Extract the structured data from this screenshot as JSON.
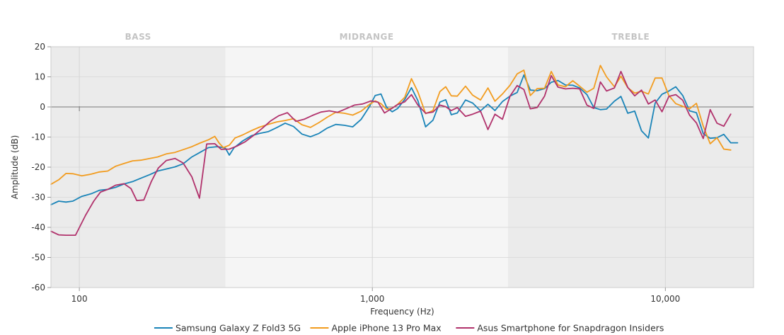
{
  "chart_data": {
    "type": "line",
    "xlabel": "Frequency (Hz)",
    "ylabel": "Amplitude (dB)",
    "x_scale": "log",
    "xlim": [
      80,
      20000
    ],
    "ylim": [
      -60,
      20
    ],
    "y_ticks": [
      20,
      10,
      0,
      -10,
      -20,
      -30,
      -40,
      -50,
      -60
    ],
    "y_tick_labels": [
      "20",
      "10",
      "0",
      "-10",
      "-20",
      "-30",
      "-40",
      "-50",
      "-60"
    ],
    "x_ticks": [
      100,
      1000,
      10000
    ],
    "x_tick_labels": [
      "100",
      "1,000",
      "10,000"
    ],
    "bands": [
      {
        "label": "BASS",
        "from": 80,
        "to": 315,
        "color": "#ebebeb"
      },
      {
        "label": "MIDRANGE",
        "from": 315,
        "to": 2900,
        "color": "#f5f5f5"
      },
      {
        "label": "TREBLE",
        "from": 2900,
        "to": 20000,
        "color": "#ebebeb"
      }
    ],
    "legend_position": "bottom",
    "series": [
      {
        "name": "Samsung Galaxy Z Fold3 5G",
        "color": "#1a84b8",
        "points": [
          [
            80,
            -32.5
          ],
          [
            85,
            -31.3
          ],
          [
            90,
            -31.6
          ],
          [
            95,
            -31.3
          ],
          [
            102,
            -29.7
          ],
          [
            110,
            -28.8
          ],
          [
            117,
            -27.7
          ],
          [
            125,
            -27.4
          ],
          [
            133,
            -26.7
          ],
          [
            142,
            -25.6
          ],
          [
            152,
            -24.8
          ],
          [
            162,
            -23.7
          ],
          [
            174,
            -22.5
          ],
          [
            185,
            -21.3
          ],
          [
            198,
            -20.6
          ],
          [
            212,
            -19.9
          ],
          [
            226,
            -18.9
          ],
          [
            242,
            -16.6
          ],
          [
            258,
            -15.1
          ],
          [
            276,
            -13.5
          ],
          [
            295,
            -13.2
          ],
          [
            305,
            -13.4
          ],
          [
            315,
            -13.7
          ],
          [
            325,
            -16
          ],
          [
            337,
            -13.6
          ],
          [
            361,
            -11.3
          ],
          [
            386,
            -9.6
          ],
          [
            412,
            -8.8
          ],
          [
            441,
            -8.2
          ],
          [
            471,
            -6.9
          ],
          [
            504,
            -5.4
          ],
          [
            538,
            -6.5
          ],
          [
            575,
            -9
          ],
          [
            615,
            -9.9
          ],
          [
            657,
            -8.8
          ],
          [
            702,
            -7
          ],
          [
            750,
            -5.8
          ],
          [
            802,
            -6.1
          ],
          [
            857,
            -6.6
          ],
          [
            916,
            -4.1
          ],
          [
            979,
            0.2
          ],
          [
            1022,
            3.8
          ],
          [
            1070,
            4.3
          ],
          [
            1118,
            -0.1
          ],
          [
            1169,
            -1.6
          ],
          [
            1221,
            -0.5
          ],
          [
            1290,
            2.5
          ],
          [
            1360,
            6.4
          ],
          [
            1430,
            2.1
          ],
          [
            1520,
            -6.6
          ],
          [
            1610,
            -4.4
          ],
          [
            1700,
            1.6
          ],
          [
            1780,
            2.4
          ],
          [
            1860,
            -2.6
          ],
          [
            1950,
            -2
          ],
          [
            2080,
            2.3
          ],
          [
            2200,
            1.3
          ],
          [
            2340,
            -1.3
          ],
          [
            2480,
            0.9
          ],
          [
            2620,
            -1.2
          ],
          [
            2780,
            1.8
          ],
          [
            2950,
            3.6
          ],
          [
            3120,
            4.8
          ],
          [
            3290,
            10.6
          ],
          [
            3460,
            5.6
          ],
          [
            3650,
            5.4
          ],
          [
            3870,
            6.1
          ],
          [
            4080,
            8.2
          ],
          [
            4300,
            8.8
          ],
          [
            4560,
            7.3
          ],
          [
            4830,
            7.2
          ],
          [
            5100,
            6.3
          ],
          [
            5400,
            4.1
          ],
          [
            5700,
            -0.2
          ],
          [
            6000,
            -0.9
          ],
          [
            6300,
            -0.7
          ],
          [
            6700,
            1.9
          ],
          [
            7050,
            3.5
          ],
          [
            7440,
            -2.1
          ],
          [
            7860,
            -1.4
          ],
          [
            8290,
            -7.9
          ],
          [
            8750,
            -10.3
          ],
          [
            9230,
            1.3
          ],
          [
            9740,
            4.2
          ],
          [
            10280,
            5.3
          ],
          [
            10850,
            6.7
          ],
          [
            11460,
            3.8
          ],
          [
            12090,
            -1.3
          ],
          [
            12760,
            -1.9
          ],
          [
            13470,
            -8.9
          ],
          [
            14220,
            -10.4
          ],
          [
            15000,
            -10.2
          ],
          [
            15830,
            -9.1
          ],
          [
            16710,
            -11.9
          ],
          [
            17640,
            -11.9
          ]
        ]
      },
      {
        "name": "Apple iPhone 13 Pro Max",
        "color": "#f29c1f",
        "points": [
          [
            80,
            -25.7
          ],
          [
            85,
            -24.2
          ],
          [
            90,
            -22.1
          ],
          [
            95,
            -22.2
          ],
          [
            102,
            -22.9
          ],
          [
            110,
            -22.3
          ],
          [
            117,
            -21.6
          ],
          [
            125,
            -21.3
          ],
          [
            133,
            -19.7
          ],
          [
            142,
            -18.8
          ],
          [
            152,
            -17.9
          ],
          [
            162,
            -17.7
          ],
          [
            174,
            -17.1
          ],
          [
            185,
            -16.6
          ],
          [
            198,
            -15.6
          ],
          [
            212,
            -15.1
          ],
          [
            226,
            -14.2
          ],
          [
            242,
            -13.2
          ],
          [
            258,
            -12
          ],
          [
            276,
            -10.9
          ],
          [
            290,
            -9.8
          ],
          [
            300,
            -12
          ],
          [
            310,
            -13.5
          ],
          [
            325,
            -12.7
          ],
          [
            340,
            -10.3
          ],
          [
            361,
            -9.3
          ],
          [
            386,
            -7.9
          ],
          [
            412,
            -6.7
          ],
          [
            441,
            -5.8
          ],
          [
            471,
            -5
          ],
          [
            504,
            -4.5
          ],
          [
            538,
            -3.9
          ],
          [
            575,
            -5.9
          ],
          [
            615,
            -6.8
          ],
          [
            657,
            -5.2
          ],
          [
            702,
            -3.4
          ],
          [
            750,
            -1.8
          ],
          [
            802,
            -2.1
          ],
          [
            857,
            -2.7
          ],
          [
            916,
            -1.4
          ],
          [
            979,
            0.9
          ],
          [
            1022,
            2
          ],
          [
            1070,
            1.1
          ],
          [
            1118,
            -0.8
          ],
          [
            1169,
            -0.4
          ],
          [
            1221,
            0.9
          ],
          [
            1290,
            3.2
          ],
          [
            1360,
            9.4
          ],
          [
            1430,
            5
          ],
          [
            1520,
            -2.2
          ],
          [
            1610,
            -1.2
          ],
          [
            1700,
            5.1
          ],
          [
            1780,
            6.7
          ],
          [
            1860,
            3.7
          ],
          [
            1950,
            3.6
          ],
          [
            2080,
            6.9
          ],
          [
            2200,
            3.9
          ],
          [
            2340,
            2.3
          ],
          [
            2480,
            6.3
          ],
          [
            2620,
            1.9
          ],
          [
            2780,
            4.3
          ],
          [
            2950,
            7.2
          ],
          [
            3120,
            11
          ],
          [
            3290,
            12.2
          ],
          [
            3460,
            3.8
          ],
          [
            3650,
            6.1
          ],
          [
            3870,
            6.2
          ],
          [
            4080,
            11.8
          ],
          [
            4300,
            7.3
          ],
          [
            4560,
            6.7
          ],
          [
            4830,
            8.7
          ],
          [
            5100,
            6.9
          ],
          [
            5400,
            4.9
          ],
          [
            5700,
            6.2
          ],
          [
            6000,
            13.8
          ],
          [
            6300,
            10
          ],
          [
            6700,
            6.7
          ],
          [
            7050,
            10.2
          ],
          [
            7440,
            6.4
          ],
          [
            7860,
            4.6
          ],
          [
            8290,
            5.2
          ],
          [
            8750,
            4.3
          ],
          [
            9230,
            9.6
          ],
          [
            9740,
            9.6
          ],
          [
            10280,
            3.8
          ],
          [
            10850,
            1.1
          ],
          [
            11460,
            0.2
          ],
          [
            12090,
            -0.6
          ],
          [
            12760,
            1.2
          ],
          [
            13470,
            -6.4
          ],
          [
            14220,
            -12.2
          ],
          [
            15000,
            -10.2
          ],
          [
            15830,
            -14
          ],
          [
            16710,
            -14.3
          ]
        ]
      },
      {
        "name": "Asus Smartphone for Snapdragon Insiders",
        "color": "#b1326c",
        "points": [
          [
            80,
            -41.3
          ],
          [
            85,
            -42.5
          ],
          [
            90,
            -42.6
          ],
          [
            97,
            -42.6
          ],
          [
            105,
            -36
          ],
          [
            112,
            -31.3
          ],
          [
            118,
            -28.3
          ],
          [
            125,
            -27.4
          ],
          [
            133,
            -26
          ],
          [
            142,
            -25.5
          ],
          [
            150,
            -27.1
          ],
          [
            157,
            -31.1
          ],
          [
            166,
            -30.9
          ],
          [
            176,
            -24.8
          ],
          [
            186,
            -20.3
          ],
          [
            198,
            -17.8
          ],
          [
            212,
            -17.1
          ],
          [
            226,
            -18.6
          ],
          [
            242,
            -23.2
          ],
          [
            257,
            -30.3
          ],
          [
            272,
            -12.3
          ],
          [
            290,
            -12.2
          ],
          [
            305,
            -14.1
          ],
          [
            325,
            -14
          ],
          [
            345,
            -13
          ],
          [
            369,
            -11.5
          ],
          [
            394,
            -9.4
          ],
          [
            421,
            -7.1
          ],
          [
            450,
            -4.6
          ],
          [
            480,
            -2.9
          ],
          [
            513,
            -1.9
          ],
          [
            548,
            -4.8
          ],
          [
            585,
            -4.1
          ],
          [
            625,
            -2.8
          ],
          [
            668,
            -1.7
          ],
          [
            713,
            -1.3
          ],
          [
            761,
            -1.8
          ],
          [
            813,
            -0.6
          ],
          [
            868,
            0.6
          ],
          [
            926,
            1
          ],
          [
            990,
            2
          ],
          [
            1045,
            1.6
          ],
          [
            1100,
            -2
          ],
          [
            1160,
            -0.6
          ],
          [
            1220,
            0.8
          ],
          [
            1290,
            1.7
          ],
          [
            1360,
            4.1
          ],
          [
            1430,
            0.6
          ],
          [
            1520,
            -2.1
          ],
          [
            1610,
            -1.7
          ],
          [
            1700,
            0.6
          ],
          [
            1780,
            0.1
          ],
          [
            1860,
            -1.2
          ],
          [
            1950,
            -0.2
          ],
          [
            2080,
            -3.1
          ],
          [
            2200,
            -2.4
          ],
          [
            2340,
            -1.4
          ],
          [
            2480,
            -7.5
          ],
          [
            2620,
            -2.4
          ],
          [
            2780,
            -4.1
          ],
          [
            2950,
            3.6
          ],
          [
            3120,
            7.1
          ],
          [
            3290,
            5.8
          ],
          [
            3460,
            -0.6
          ],
          [
            3650,
            -0.2
          ],
          [
            3870,
            3.6
          ],
          [
            4080,
            10.4
          ],
          [
            4300,
            6.6
          ],
          [
            4560,
            6
          ],
          [
            4830,
            6.2
          ],
          [
            5100,
            6
          ],
          [
            5400,
            0.6
          ],
          [
            5700,
            -0.5
          ],
          [
            6000,
            8.3
          ],
          [
            6300,
            5.3
          ],
          [
            6700,
            6.3
          ],
          [
            7050,
            11.8
          ],
          [
            7440,
            6.5
          ],
          [
            7860,
            3.7
          ],
          [
            8290,
            5.6
          ],
          [
            8750,
            1
          ],
          [
            9230,
            2.3
          ],
          [
            9740,
            -1.6
          ],
          [
            10280,
            3.5
          ],
          [
            10850,
            4.1
          ],
          [
            11460,
            2.2
          ],
          [
            12090,
            -2.7
          ],
          [
            12760,
            -5.3
          ],
          [
            13470,
            -10.5
          ],
          [
            14220,
            -0.9
          ],
          [
            15000,
            -5.4
          ],
          [
            15830,
            -6.4
          ],
          [
            16710,
            -2.4
          ]
        ]
      }
    ]
  }
}
